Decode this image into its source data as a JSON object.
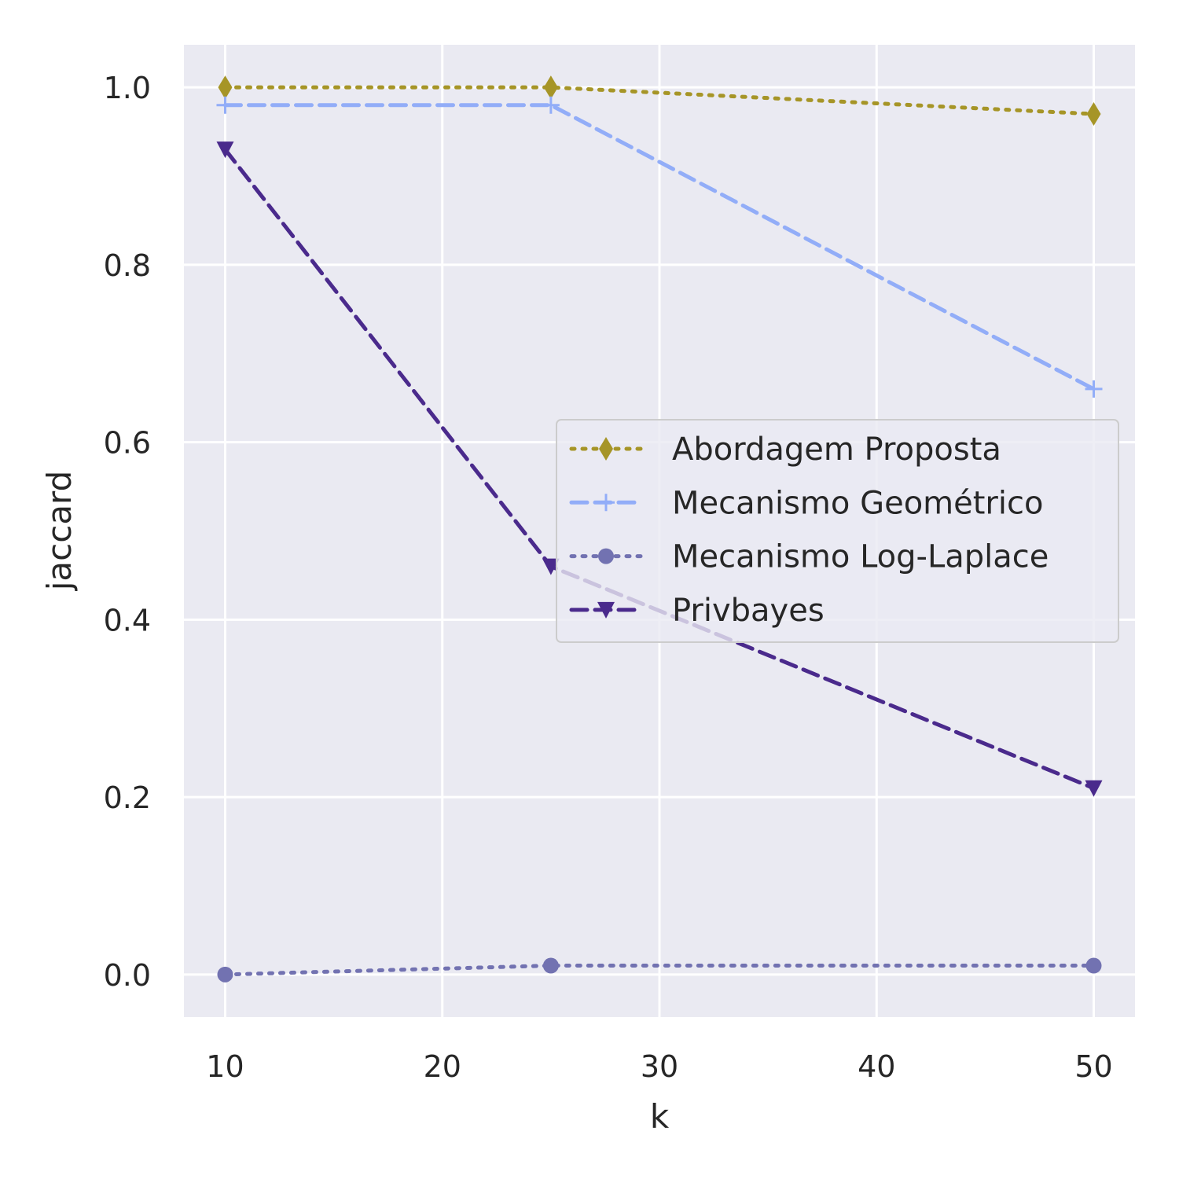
{
  "chart_data": {
    "type": "line",
    "xlabel": "k",
    "ylabel": "jaccard",
    "xlim": [
      8.1,
      51.9
    ],
    "ylim": [
      -0.048,
      1.048
    ],
    "xticks": [
      10,
      20,
      30,
      40,
      50
    ],
    "yticks": [
      0.0,
      0.2,
      0.4,
      0.6,
      0.8,
      1.0
    ],
    "xtick_labels": [
      "10",
      "20",
      "30",
      "40",
      "50"
    ],
    "ytick_labels": [
      "0.0",
      "0.2",
      "0.4",
      "0.6",
      "0.8",
      "1.0"
    ],
    "grid": true,
    "legend_position": "center-right",
    "background": "#eaeaf2",
    "x": [
      10,
      25,
      50
    ],
    "series": [
      {
        "name": "Abordagem Proposta",
        "values": [
          1.0,
          1.0,
          0.97
        ],
        "color": "#a69527",
        "linestyle": "dotted",
        "marker": "diamond"
      },
      {
        "name": "Mecanismo Geométrico",
        "values": [
          0.98,
          0.98,
          0.66
        ],
        "color": "#92adf8",
        "linestyle": "dashed",
        "marker": "plus"
      },
      {
        "name": "Mecanismo Log-Laplace",
        "values": [
          0.0,
          0.01,
          0.01
        ],
        "color": "#7272b1",
        "linestyle": "dotted",
        "marker": "circle"
      },
      {
        "name": "Privbayes",
        "values": [
          0.93,
          0.46,
          0.21
        ],
        "color": "#4a2a8c",
        "linestyle": "dashed",
        "marker": "triangle-down"
      }
    ]
  }
}
